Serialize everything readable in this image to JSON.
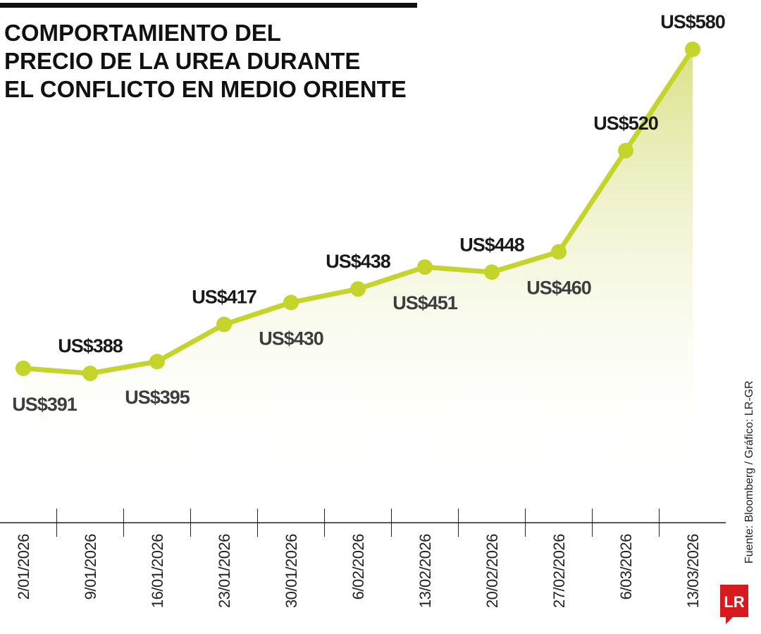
{
  "chart_data": {
    "type": "line",
    "title": [
      "COMPORTAMIENTO DEL",
      "PRECIO DE LA UREA DURANTE",
      "EL CONFLICTO EN MEDIO ORIENTE"
    ],
    "categories": [
      "2/01/2026",
      "9/01/2026",
      "16/01/2026",
      "23/01/2026",
      "30/01/2026",
      "6/02/2026",
      "13/02/2026",
      "20/02/2026",
      "27/02/2026",
      "6/03/2026",
      "13/03/2026"
    ],
    "values": [
      391,
      388,
      395,
      417,
      430,
      438,
      451,
      448,
      460,
      520,
      580
    ],
    "value_labels": [
      "US$391",
      "US$388",
      "US$395",
      "US$417",
      "US$430",
      "US$438",
      "US$451",
      "US$448",
      "US$460",
      "US$520",
      "US$580"
    ],
    "color": "#c5d42a",
    "source": "Fuente: Bloomberg / Gráfico: LR-GR",
    "logo": "LR"
  }
}
